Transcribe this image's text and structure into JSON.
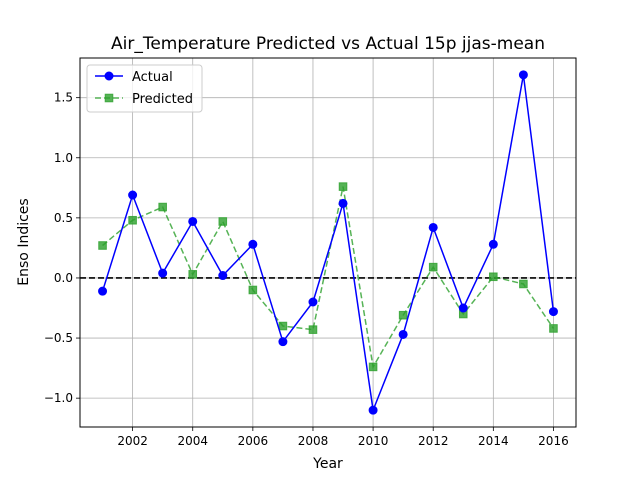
{
  "chart_data": {
    "type": "line",
    "title": "Air_Temperature Predicted vs Actual 15p jjas-mean",
    "xlabel": "Year",
    "ylabel": "Enso Indices",
    "x": [
      2001,
      2002,
      2003,
      2004,
      2005,
      2006,
      2007,
      2008,
      2009,
      2010,
      2011,
      2012,
      2013,
      2014,
      2015,
      2016
    ],
    "series": [
      {
        "name": "Actual",
        "color": "#0000ff",
        "line_style": "solid",
        "marker": "circle",
        "values": [
          -0.11,
          0.69,
          0.04,
          0.47,
          0.02,
          0.28,
          -0.53,
          -0.2,
          0.62,
          -1.1,
          -0.47,
          0.42,
          -0.25,
          0.28,
          1.69,
          -0.28
        ]
      },
      {
        "name": "Predicted",
        "color": "#2ca02c",
        "line_style": "dashed",
        "marker": "square",
        "values": [
          0.27,
          0.48,
          0.59,
          0.03,
          0.47,
          -0.1,
          -0.4,
          -0.43,
          0.76,
          -0.74,
          -0.31,
          0.09,
          -0.3,
          0.01,
          -0.05,
          -0.42
        ]
      }
    ],
    "xlim": [
      2000.25,
      2016.75
    ],
    "ylim": [
      -1.24,
      1.83
    ],
    "x_ticks": [
      2002,
      2004,
      2006,
      2008,
      2010,
      2012,
      2014,
      2016
    ],
    "x_tick_labels": [
      "2002",
      "2004",
      "2006",
      "2008",
      "2010",
      "2012",
      "2014",
      "2016"
    ],
    "y_ticks": [
      -1.0,
      -0.5,
      0.0,
      0.5,
      1.0,
      1.5
    ],
    "y_tick_labels": [
      "−1.0",
      "−0.5",
      "0.0",
      "0.5",
      "1.0",
      "1.5"
    ],
    "reference_line": {
      "y": 0,
      "color": "#000000",
      "line_style": "dashed"
    },
    "grid": true,
    "legend_position": "upper-left"
  }
}
